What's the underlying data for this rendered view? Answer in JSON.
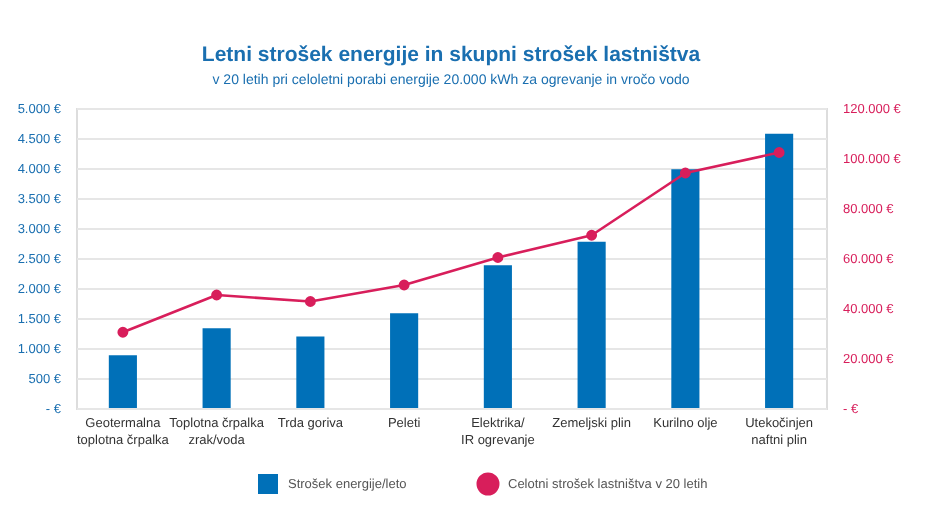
{
  "chart_data": {
    "type": "bar",
    "title": "Letni strošek energije in skupni strošek lastništva",
    "subtitle": "v 20 letih pri celoletni porabi energije 20.000 kWh za ogrevanje in vročo vodo",
    "categories": [
      "Geotermalna\ntoplotna črpalka",
      "Toplotna črpalka\nzrak/voda",
      "Trda goriva",
      "Peleti",
      "Elektrika/\nIR ogrevanje",
      "Zemeljski plin",
      "Kurilno olje",
      "Utekočinjen\nnaftni plin"
    ],
    "series": [
      {
        "name": "Strošek energije/leto",
        "color": "#0070b8",
        "values": [
          880,
          1330,
          1190,
          1580,
          2380,
          2770,
          3980,
          4570
        ]
      },
      {
        "name": "Celotni strošek lastništva v 20 letih",
        "color": "#d81e5b",
        "type": "line",
        "axis": "y2",
        "marker": "circle",
        "values": [
          30300,
          45200,
          42600,
          49200,
          60200,
          69100,
          94000,
          102200
        ]
      }
    ],
    "ylim": [
      0,
      5000
    ],
    "yticks": [
      {
        "value": 0,
        "label": "- €"
      },
      {
        "value": 500,
        "label": "500 €"
      },
      {
        "value": 1000,
        "label": "1.000 €"
      },
      {
        "value": 1500,
        "label": "1.500 €"
      },
      {
        "value": 2000,
        "label": "2.000 €"
      },
      {
        "value": 2500,
        "label": "2.500 €"
      },
      {
        "value": 3000,
        "label": "3.000 €"
      },
      {
        "value": 3500,
        "label": "3.500 €"
      },
      {
        "value": 4000,
        "label": "4.000 €"
      },
      {
        "value": 4500,
        "label": "4.500 €"
      },
      {
        "value": 5000,
        "label": "5.000 €"
      }
    ],
    "y2lim": [
      0,
      120000
    ],
    "y2ticks": [
      {
        "value": 0,
        "label": "- €"
      },
      {
        "value": 20000,
        "label": "20.000 €"
      },
      {
        "value": 40000,
        "label": "40.000 €"
      },
      {
        "value": 60000,
        "label": "60.000 €"
      },
      {
        "value": 80000,
        "label": "80.000 €"
      },
      {
        "value": 100000,
        "label": "100.000 €"
      },
      {
        "value": 120000,
        "label": "120.000 €"
      }
    ],
    "grid": "y",
    "legend": "bottom"
  }
}
